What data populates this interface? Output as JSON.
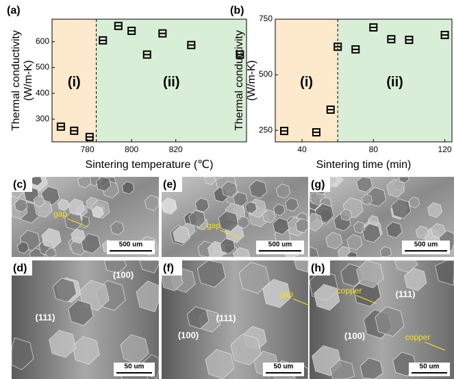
{
  "chart_data": [
    {
      "type": "scatter",
      "panel_label": "(a)",
      "xlabel": "Sintering temperature (℃)",
      "ylabel": [
        "Thermal conductivity",
        "(W/m-K)"
      ],
      "x": [
        768,
        774,
        781,
        787,
        794,
        800,
        807,
        814,
        827,
        849
      ],
      "values": [
        271,
        255,
        231,
        605,
        661,
        642,
        550,
        632,
        587,
        550
      ],
      "color": "#000000",
      "xlim": [
        764,
        852
      ],
      "ylim": [
        212,
        687
      ],
      "xticks": [
        780,
        800,
        820
      ],
      "yticks": [
        300,
        400,
        500,
        600
      ],
      "region_split": 784,
      "region_labels": [
        "(i)",
        "(ii)"
      ],
      "region_colors": [
        "#fde9cc",
        "#d9eed6"
      ]
    },
    {
      "type": "scatter",
      "panel_label": "(b)",
      "xlabel": "Sintering time (min)",
      "ylabel": [
        "Thermal conductivity",
        "(W/m-K)"
      ],
      "x": [
        30,
        48,
        56,
        60,
        70,
        80,
        90,
        100,
        120
      ],
      "values": [
        247,
        241,
        343,
        626,
        614,
        713,
        660,
        657,
        679
      ],
      "color": "#000000",
      "xlim": [
        25,
        124
      ],
      "ylim": [
        198,
        750
      ],
      "xticks": [
        40,
        80,
        120
      ],
      "yticks": [
        250,
        500,
        750
      ],
      "region_split": 60,
      "region_labels": [
        "(i)",
        "(ii)"
      ],
      "region_colors": [
        "#fde9cc",
        "#d9eed6"
      ]
    }
  ],
  "panels": [
    {
      "label": "(c)",
      "scale": "500 um",
      "annotations": [
        "gap"
      ]
    },
    {
      "label": "(e)",
      "scale": "500 um",
      "annotations": [
        "gap"
      ]
    },
    {
      "label": "(g)",
      "scale": "500 um",
      "annotations": []
    },
    {
      "label": "(d)",
      "scale": "50 um",
      "annotations": [
        "(100)",
        "(111)"
      ]
    },
    {
      "label": "(f)",
      "scale": "50 um",
      "annotations": [
        "gap",
        "(100)",
        "(111)"
      ]
    },
    {
      "label": "(h)",
      "scale": "50 um",
      "annotations": [
        "copper",
        "(111)",
        "(100)",
        "copper"
      ]
    }
  ]
}
